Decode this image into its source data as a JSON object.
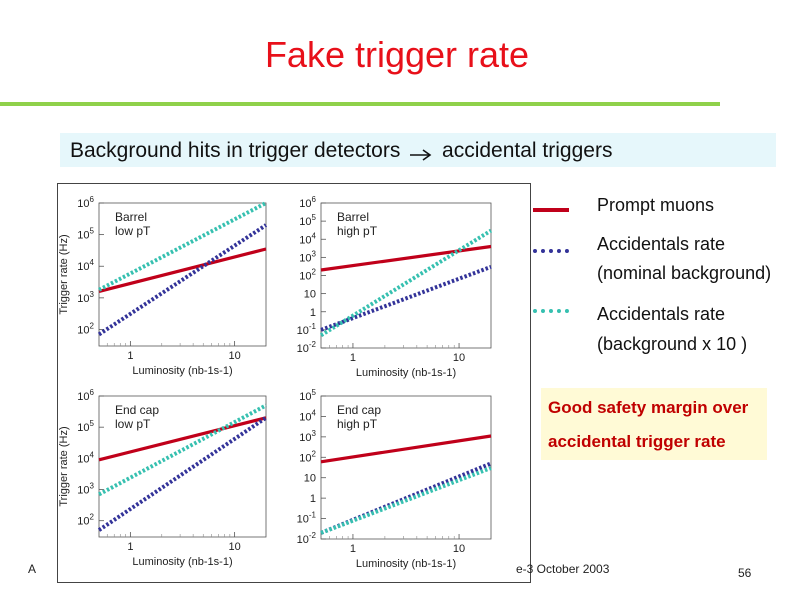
{
  "slide": {
    "title": "Fake trigger rate",
    "banner_before_arrow": "Background hits in trigger detectors",
    "banner_after_arrow": "accidental triggers",
    "safety_line1": "Good safety margin over",
    "safety_line2": "accidental trigger rate",
    "footer_left": "A",
    "footer_date": "e-3 October 2003",
    "page_number": "56"
  },
  "legend": [
    {
      "label_lines": [
        "Prompt muons"
      ],
      "color": "#c0001a",
      "style": "solid"
    },
    {
      "label_lines": [
        "Accidentals rate",
        "(nominal background)"
      ],
      "color": "#333399",
      "style": "dotted"
    },
    {
      "label_lines": [
        "Accidentals rate",
        "(background x 10 )"
      ],
      "color": "#36c0b0",
      "style": "dotted"
    }
  ],
  "colors": {
    "prompt": "#c0001a",
    "nominal": "#333399",
    "x10": "#36c0b0",
    "title": "#e8101a",
    "rule": "#8fd14a",
    "banner_bg": "#e6f7fb",
    "safety_bg": "#fffad6",
    "safety_text": "#c00000"
  },
  "chart_data": [
    {
      "type": "line",
      "log_scale": {
        "x": true,
        "y": true
      },
      "panel_label": [
        "Barrel",
        "low pT"
      ],
      "ylabel": "Trigger rate (Hz)",
      "xlabel": "Luminosity (nb-1s-1)",
      "x_ticks": [
        "1",
        "10"
      ],
      "y_ticks": [
        "10^2",
        "10^3",
        "10^4",
        "10^5",
        "10^6"
      ],
      "xlim": [
        0.5,
        20
      ],
      "ylim": [
        30,
        1000000
      ],
      "series": [
        {
          "key": "prompt",
          "x": [
            0.5,
            20
          ],
          "y": [
            1600,
            35000
          ]
        },
        {
          "key": "nominal",
          "x": [
            0.5,
            20
          ],
          "y": [
            70,
            200000
          ]
        },
        {
          "key": "x10",
          "x": [
            0.5,
            20
          ],
          "y": [
            1800,
            1000000
          ]
        }
      ]
    },
    {
      "type": "line",
      "log_scale": {
        "x": true,
        "y": true
      },
      "panel_label": [
        "Barrel",
        "high pT"
      ],
      "ylabel": "",
      "xlabel": "Luminosity (nb-1s-1)",
      "x_ticks": [
        "1",
        "10"
      ],
      "y_ticks": [
        "10^-2",
        "10^-1",
        "1",
        "10",
        "10^2",
        "10^3",
        "10^4",
        "10^5",
        "10^6"
      ],
      "xlim": [
        0.5,
        20
      ],
      "ylim": [
        0.01,
        1000000
      ],
      "series": [
        {
          "key": "prompt",
          "x": [
            0.5,
            20
          ],
          "y": [
            200,
            4000
          ]
        },
        {
          "key": "nominal",
          "x": [
            0.5,
            20
          ],
          "y": [
            0.1,
            300
          ]
        },
        {
          "key": "x10",
          "x": [
            0.5,
            20
          ],
          "y": [
            0.05,
            30000
          ]
        }
      ]
    },
    {
      "type": "line",
      "log_scale": {
        "x": true,
        "y": true
      },
      "panel_label": [
        "End cap",
        "low pT"
      ],
      "ylabel": "Trigger rate (Hz)",
      "xlabel": "Luminosity (nb-1s-1)",
      "x_ticks": [
        "1",
        "10"
      ],
      "y_ticks": [
        "10^2",
        "10^3",
        "10^4",
        "10^5",
        "10^6"
      ],
      "xlim": [
        0.5,
        20
      ],
      "ylim": [
        30,
        1000000
      ],
      "series": [
        {
          "key": "prompt",
          "x": [
            0.5,
            20
          ],
          "y": [
            9000,
            200000
          ]
        },
        {
          "key": "nominal",
          "x": [
            0.5,
            20
          ],
          "y": [
            50,
            200000
          ]
        },
        {
          "key": "x10",
          "x": [
            0.5,
            20
          ],
          "y": [
            700,
            500000
          ]
        }
      ]
    },
    {
      "type": "line",
      "log_scale": {
        "x": true,
        "y": true
      },
      "panel_label": [
        "End cap",
        "high pT"
      ],
      "ylabel": "",
      "xlabel": "Luminosity (nb-1s-1)",
      "x_ticks": [
        "1",
        "10"
      ],
      "y_ticks": [
        "10^-2",
        "10^-1",
        "1",
        "10",
        "10^2",
        "10^3",
        "10^4",
        "10^5"
      ],
      "xlim": [
        0.5,
        20
      ],
      "ylim": [
        0.01,
        100000
      ],
      "series": [
        {
          "key": "prompt",
          "x": [
            0.5,
            20
          ],
          "y": [
            60,
            1100
          ]
        },
        {
          "key": "nominal",
          "x": [
            0.5,
            20
          ],
          "y": [
            0.02,
            50
          ]
        },
        {
          "key": "x10",
          "x": [
            0.5,
            20
          ],
          "y": [
            0.02,
            30
          ]
        }
      ]
    }
  ]
}
